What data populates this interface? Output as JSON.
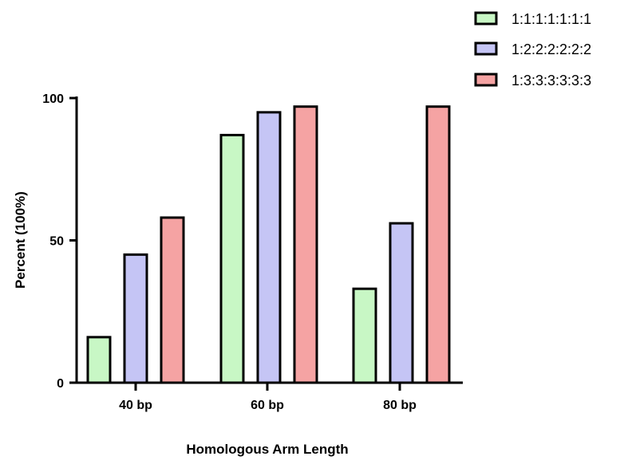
{
  "chart_data": {
    "type": "bar",
    "title": "",
    "xlabel": "Homologous Arm Length",
    "ylabel": "Percent (100%)",
    "categories": [
      "40 bp",
      "60 bp",
      "80 bp"
    ],
    "ylim": [
      0,
      100
    ],
    "yticks": [
      0,
      50,
      100
    ],
    "grid": false,
    "legend_position": "top-right",
    "series": [
      {
        "name": "1:1:1:1:1:1:1",
        "color": "#c8f7c5",
        "values": [
          16,
          87,
          33
        ]
      },
      {
        "name": "1:2:2:2:2:2:2",
        "color": "#c5c5f5",
        "values": [
          45,
          95,
          56
        ]
      },
      {
        "name": "1:3:3:3:3:3:3",
        "color": "#f5a3a3",
        "values": [
          58,
          97,
          97
        ]
      }
    ]
  }
}
